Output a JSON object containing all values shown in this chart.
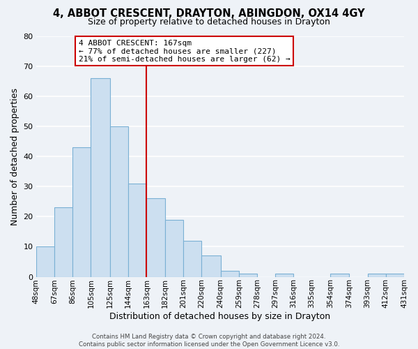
{
  "title": "4, ABBOT CRESCENT, DRAYTON, ABINGDON, OX14 4GY",
  "subtitle": "Size of property relative to detached houses in Drayton",
  "xlabel": "Distribution of detached houses by size in Drayton",
  "ylabel": "Number of detached properties",
  "bar_edges": [
    48,
    67,
    86,
    105,
    125,
    144,
    163,
    182,
    201,
    220,
    240,
    259,
    278,
    297,
    316,
    335,
    354,
    374,
    393,
    412,
    431
  ],
  "bar_heights": [
    10,
    23,
    43,
    66,
    50,
    31,
    26,
    19,
    12,
    7,
    2,
    1,
    0,
    1,
    0,
    0,
    1,
    0,
    1,
    1
  ],
  "bar_color": "#ccdff0",
  "bar_edgecolor": "#7ab0d4",
  "vline_x": 163,
  "vline_color": "#cc0000",
  "annotation_box_text": "4 ABBOT CRESCENT: 167sqm\n← 77% of detached houses are smaller (227)\n21% of semi-detached houses are larger (62) →",
  "annotation_box_edgecolor": "#cc0000",
  "annotation_box_facecolor": "#ffffff",
  "ylim": [
    0,
    80
  ],
  "yticks": [
    0,
    10,
    20,
    30,
    40,
    50,
    60,
    70,
    80
  ],
  "tick_labels": [
    "48sqm",
    "67sqm",
    "86sqm",
    "105sqm",
    "125sqm",
    "144sqm",
    "163sqm",
    "182sqm",
    "201sqm",
    "220sqm",
    "240sqm",
    "259sqm",
    "278sqm",
    "297sqm",
    "316sqm",
    "335sqm",
    "354sqm",
    "374sqm",
    "393sqm",
    "412sqm",
    "431sqm"
  ],
  "footer_text": "Contains HM Land Registry data © Crown copyright and database right 2024.\nContains public sector information licensed under the Open Government Licence v3.0.",
  "background_color": "#eef2f7",
  "grid_color": "#ffffff",
  "figwidth": 6.0,
  "figheight": 5.0,
  "dpi": 100
}
